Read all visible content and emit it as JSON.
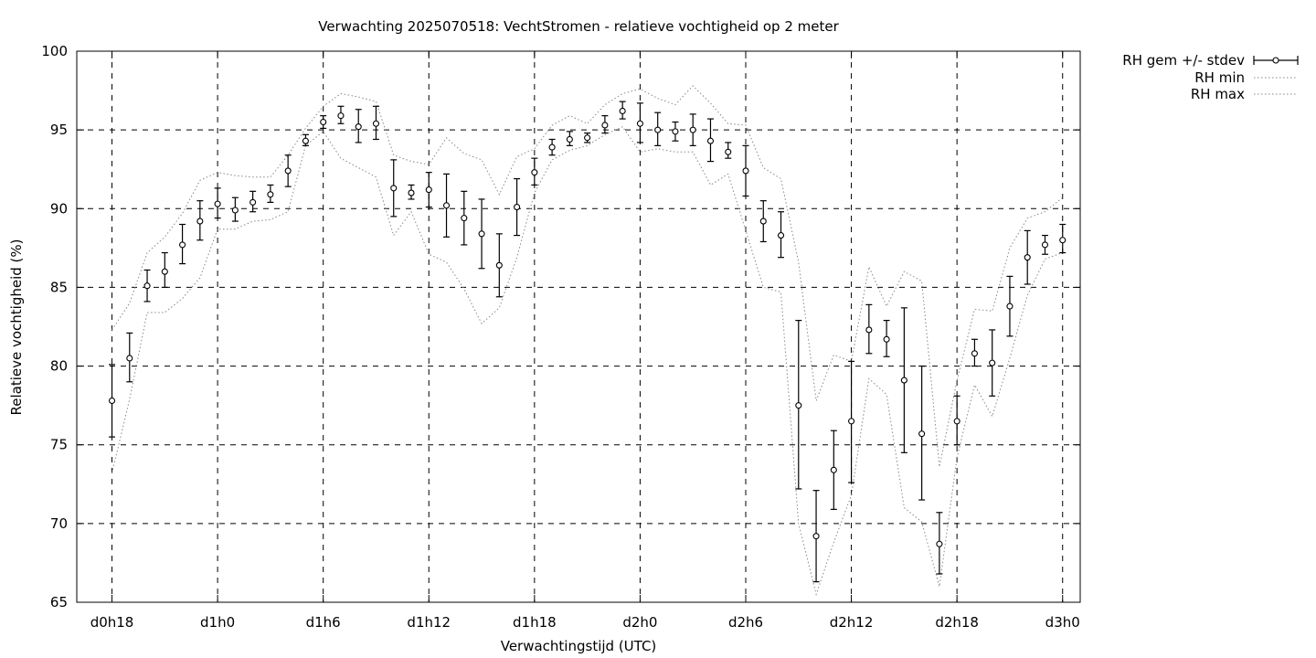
{
  "chart_data": {
    "type": "line",
    "title": "Verwachting 2025070518: VechtStromen - relatieve vochtigheid op 2 meter",
    "xlabel": "Verwachtingstijd (UTC)",
    "ylabel": "Relatieve vochtigheid (%)",
    "xlim": [
      16,
      73
    ],
    "ylim": [
      65,
      100
    ],
    "y_ticks": [
      65,
      70,
      75,
      80,
      85,
      90,
      95,
      100
    ],
    "x_ticks": [
      {
        "value": 18,
        "label": "d0h18"
      },
      {
        "value": 24,
        "label": "d1h0"
      },
      {
        "value": 30,
        "label": "d1h6"
      },
      {
        "value": 36,
        "label": "d1h12"
      },
      {
        "value": 42,
        "label": "d1h18"
      },
      {
        "value": 48,
        "label": "d2h0"
      },
      {
        "value": 54,
        "label": "d2h6"
      },
      {
        "value": 60,
        "label": "d2h12"
      },
      {
        "value": 66,
        "label": "d2h18"
      },
      {
        "value": 72,
        "label": "d3h0"
      }
    ],
    "grid": true,
    "legend_position": "outside-top-right",
    "series": [
      {
        "name": "RH gem +/- stdev",
        "style": "errorbars",
        "x": [
          18,
          19,
          20,
          21,
          22,
          23,
          24,
          25,
          26,
          27,
          28,
          29,
          30,
          31,
          32,
          33,
          34,
          35,
          36,
          37,
          38,
          39,
          40,
          41,
          42,
          43,
          44,
          45,
          46,
          47,
          48,
          49,
          50,
          51,
          52,
          53,
          54,
          55,
          56,
          57,
          58,
          59,
          60,
          61,
          62,
          63,
          64,
          65,
          66,
          67,
          68,
          69,
          70,
          71,
          72
        ],
        "mean": [
          77.8,
          80.5,
          85.1,
          86.0,
          87.7,
          89.2,
          90.3,
          89.9,
          90.4,
          90.9,
          92.4,
          94.3,
          95.5,
          95.9,
          95.2,
          95.4,
          91.3,
          91.0,
          91.2,
          90.2,
          89.4,
          88.4,
          86.4,
          90.1,
          92.3,
          93.9,
          94.4,
          94.5,
          95.3,
          96.2,
          95.4,
          95.0,
          94.9,
          95.0,
          94.3,
          93.6,
          92.4,
          89.2,
          88.3,
          77.5,
          69.2,
          73.4,
          76.5,
          82.3,
          81.7,
          79.1,
          75.7,
          68.7,
          76.5,
          80.8,
          80.2,
          83.8,
          86.9,
          87.7,
          88.0
        ],
        "low": [
          75.5,
          79.0,
          84.1,
          85.0,
          86.5,
          88.0,
          89.4,
          89.2,
          89.8,
          90.4,
          91.4,
          94.0,
          95.1,
          95.4,
          94.2,
          94.4,
          89.5,
          90.6,
          90.1,
          88.2,
          87.7,
          86.2,
          84.4,
          88.3,
          91.5,
          93.4,
          94.0,
          94.2,
          94.8,
          95.7,
          94.2,
          94.0,
          94.3,
          94.0,
          93.0,
          93.2,
          90.8,
          87.9,
          86.9,
          72.2,
          66.3,
          70.9,
          72.6,
          80.8,
          80.6,
          74.5,
          71.5,
          66.8,
          75.0,
          80.0,
          78.1,
          81.9,
          85.2,
          87.1,
          87.2
        ],
        "high": [
          80.1,
          82.1,
          86.1,
          87.2,
          89.0,
          90.5,
          91.3,
          90.7,
          91.1,
          91.5,
          93.4,
          94.7,
          95.9,
          96.5,
          96.3,
          96.5,
          93.1,
          91.5,
          92.3,
          92.2,
          91.1,
          90.6,
          88.4,
          91.9,
          93.2,
          94.4,
          94.9,
          94.8,
          95.9,
          96.8,
          96.7,
          96.1,
          95.5,
          96.0,
          95.7,
          94.2,
          94.0,
          90.5,
          89.8,
          82.9,
          72.1,
          75.9,
          80.3,
          83.9,
          82.9,
          83.7,
          80.0,
          70.7,
          78.1,
          81.7,
          82.3,
          85.7,
          88.6,
          88.3,
          89.0
        ]
      },
      {
        "name": "RH min",
        "style": "dotted",
        "x": [
          18,
          19,
          20,
          21,
          22,
          23,
          24,
          25,
          26,
          27,
          28,
          29,
          30,
          31,
          32,
          33,
          34,
          35,
          36,
          37,
          38,
          39,
          40,
          41,
          42,
          43,
          44,
          45,
          46,
          47,
          48,
          49,
          50,
          51,
          52,
          53,
          54,
          55,
          56,
          57,
          58,
          59,
          60,
          61,
          62,
          63,
          64,
          65,
          66,
          67,
          68,
          69,
          70,
          71,
          72
        ],
        "values": [
          73.2,
          77.9,
          83.4,
          83.4,
          84.3,
          85.6,
          88.7,
          88.7,
          89.2,
          89.3,
          89.8,
          94.0,
          94.9,
          93.2,
          92.6,
          92.0,
          88.3,
          89.8,
          87.1,
          86.6,
          84.9,
          82.7,
          83.7,
          86.9,
          91.0,
          93.1,
          93.7,
          94.0,
          94.7,
          95.2,
          93.6,
          93.8,
          93.6,
          93.6,
          91.5,
          92.2,
          88.6,
          85.0,
          84.7,
          70.0,
          65.5,
          68.8,
          71.8,
          79.2,
          78.2,
          71.0,
          70.1,
          66.0,
          74.2,
          78.8,
          76.8,
          80.5,
          84.5,
          86.8,
          87.2
        ]
      },
      {
        "name": "RH max",
        "style": "dotted",
        "x": [
          18,
          19,
          20,
          21,
          22,
          23,
          24,
          25,
          26,
          27,
          28,
          29,
          30,
          31,
          32,
          33,
          34,
          35,
          36,
          37,
          38,
          39,
          40,
          41,
          42,
          43,
          44,
          45,
          46,
          47,
          48,
          49,
          50,
          51,
          52,
          53,
          54,
          55,
          56,
          57,
          58,
          59,
          60,
          61,
          62,
          63,
          64,
          65,
          66,
          67,
          68,
          69,
          70,
          71,
          72
        ],
        "values": [
          82.3,
          84.0,
          87.2,
          88.2,
          89.7,
          91.8,
          92.3,
          92.1,
          92.0,
          92.0,
          93.4,
          95.1,
          96.5,
          97.3,
          97.1,
          96.8,
          93.4,
          93.0,
          92.8,
          94.5,
          93.5,
          93.1,
          90.9,
          93.3,
          93.8,
          95.3,
          95.9,
          95.4,
          96.6,
          97.3,
          97.6,
          97.0,
          96.6,
          97.8,
          96.7,
          95.4,
          95.3,
          92.6,
          91.9,
          86.6,
          77.8,
          80.7,
          80.3,
          86.3,
          83.8,
          86.0,
          85.4,
          73.6,
          79.1,
          83.6,
          83.5,
          87.5,
          89.4,
          89.8,
          90.7
        ]
      }
    ]
  }
}
